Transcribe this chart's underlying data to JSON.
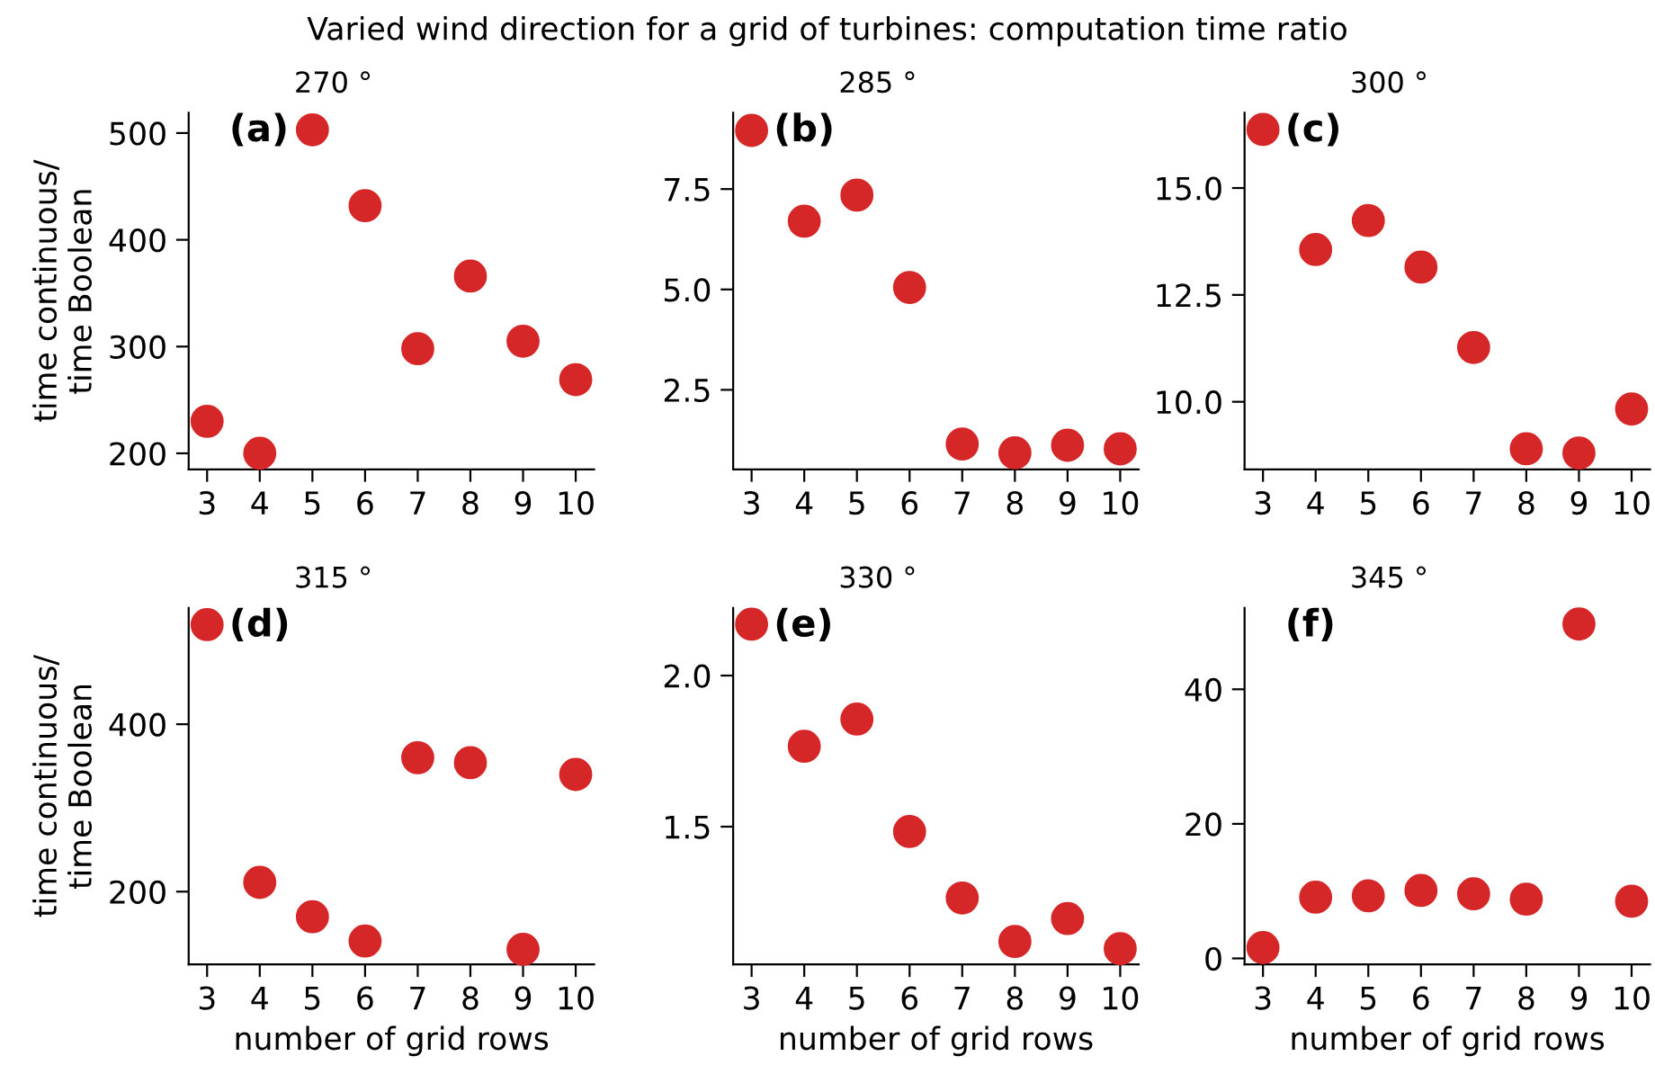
{
  "chart_data": [
    {
      "type": "scatter",
      "title": "(a)",
      "subtitle": "270 °",
      "annotations": [
        "Varied wind direction for a grid of turbines: computation time ratio"
      ],
      "ylabel": "time continuous/\ntime Boolean",
      "categories": [
        "3",
        "4",
        "5",
        "6",
        "7",
        "8",
        "9",
        "10"
      ],
      "series": [
        {
          "color": "#d62728",
          "values": [
            230,
            200,
            503,
            432,
            298,
            366,
            305,
            269
          ]
        }
      ],
      "ylim": [
        185,
        519
      ],
      "yticks": [
        200,
        300,
        400,
        500
      ],
      "marker": "circle"
    },
    {
      "type": "scatter",
      "title": "(b)",
      "subtitle": "285 °",
      "categories": [
        "3",
        "4",
        "5",
        "6",
        "7",
        "8",
        "9",
        "10"
      ],
      "series": [
        {
          "color": "#d62728",
          "values": [
            8.96,
            6.7,
            7.35,
            5.05,
            1.15,
            0.93,
            1.12,
            1.03
          ]
        }
      ],
      "ylim": [
        0.52,
        9.4
      ],
      "yticks": [
        {
          "value": 2.5,
          "label": "2.5"
        },
        {
          "value": 5,
          "label": "5.0"
        },
        {
          "value": 7.5,
          "label": "7.5"
        }
      ],
      "marker": "circle"
    },
    {
      "type": "scatter",
      "title": "(c)",
      "subtitle": "300 °",
      "categories": [
        "3",
        "4",
        "5",
        "6",
        "7",
        "8",
        "9",
        "10"
      ],
      "series": [
        {
          "color": "#d62728",
          "values": [
            16.37,
            13.56,
            14.24,
            13.15,
            11.27,
            8.9,
            8.8,
            9.83
          ]
        }
      ],
      "ylim": [
        8.42,
        16.76
      ],
      "yticks": [
        {
          "value": 10,
          "label": "10.0"
        },
        {
          "value": 12.5,
          "label": "12.5"
        },
        {
          "value": 15,
          "label": "15.0"
        }
      ],
      "marker": "circle"
    },
    {
      "type": "scatter",
      "title": "(d)",
      "subtitle": "315 °",
      "xlabel": "number of grid rows",
      "ylabel": "time continuous/\ntime Boolean",
      "categories": [
        "3",
        "4",
        "5",
        "6",
        "7",
        "8",
        "9",
        "10"
      ],
      "series": [
        {
          "color": "#d62728",
          "values": [
            519,
            211,
            170,
            141,
            360,
            354,
            131,
            340
          ]
        }
      ],
      "ylim": [
        113,
        539
      ],
      "yticks": [
        200,
        400
      ],
      "marker": "circle"
    },
    {
      "type": "scatter",
      "title": "(e)",
      "subtitle": "330 °",
      "xlabel": "number of grid rows",
      "categories": [
        "3",
        "4",
        "5",
        "6",
        "7",
        "8",
        "9",
        "10"
      ],
      "series": [
        {
          "color": "#d62728",
          "values": [
            2.17,
            1.766,
            1.856,
            1.484,
            1.264,
            1.12,
            1.196,
            1.096
          ]
        }
      ],
      "ylim": [
        1.044,
        2.224
      ],
      "yticks": [
        1.5,
        {
          "value": 2,
          "label": "2.0"
        }
      ],
      "marker": "circle"
    },
    {
      "type": "scatter",
      "title": "(f)",
      "subtitle": "345 °",
      "xlabel": "number of grid rows",
      "categories": [
        "3",
        "4",
        "5",
        "6",
        "7",
        "8",
        "9",
        "10"
      ],
      "series": [
        {
          "color": "#d62728",
          "values": [
            1.6,
            9.1,
            9.3,
            10.1,
            9.6,
            8.8,
            49.7,
            8.5
          ]
        }
      ],
      "ylim": [
        -0.9,
        52.1
      ],
      "yticks": [
        0,
        20,
        40
      ],
      "marker": "circle"
    }
  ]
}
